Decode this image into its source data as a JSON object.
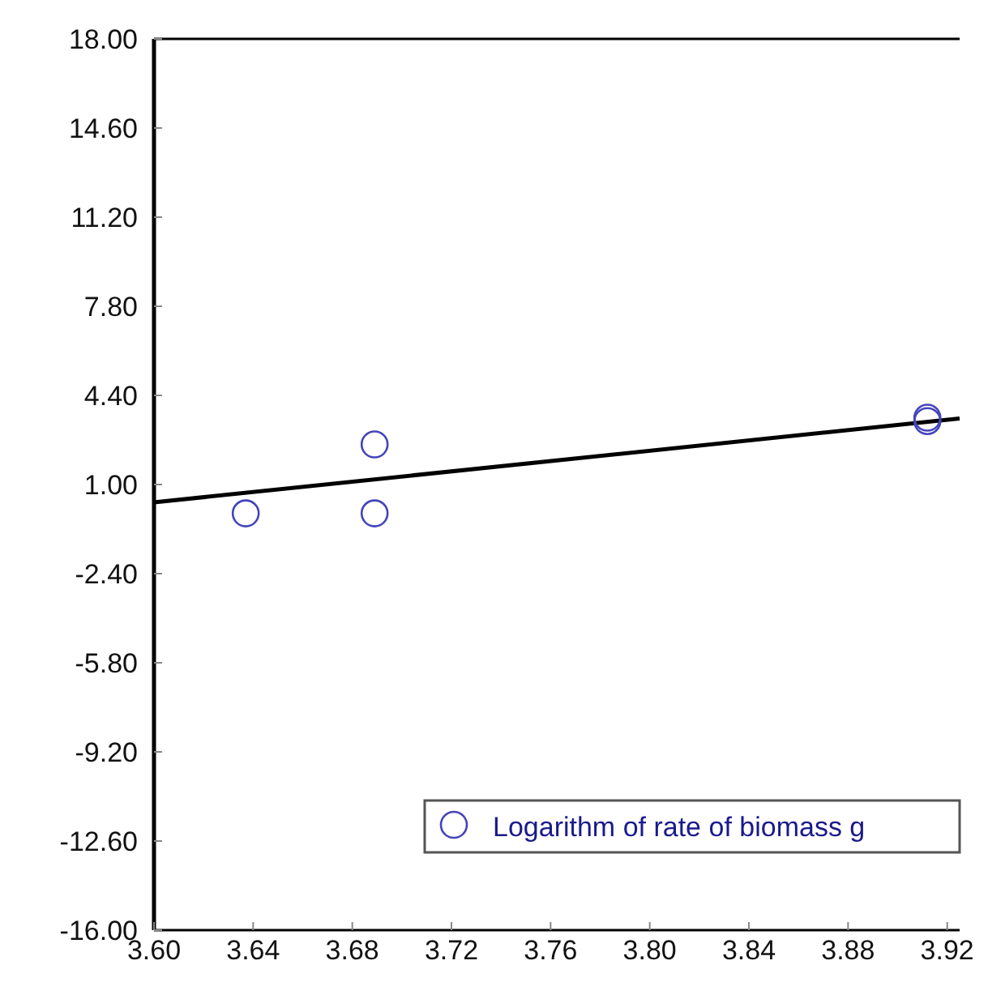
{
  "chart_data": {
    "type": "scatter",
    "xlim": [
      3.6,
      3.925
    ],
    "ylim": [
      -16,
      18
    ],
    "xticks": [
      {
        "value": 3.6,
        "label": "3.60"
      },
      {
        "value": 3.64,
        "label": "3.64"
      },
      {
        "value": 3.68,
        "label": "3.68"
      },
      {
        "value": 3.72,
        "label": "3.72"
      },
      {
        "value": 3.76,
        "label": "3.76"
      },
      {
        "value": 3.8,
        "label": "3.80"
      },
      {
        "value": 3.84,
        "label": "3.84"
      },
      {
        "value": 3.88,
        "label": "3.88"
      },
      {
        "value": 3.92,
        "label": "3.92"
      }
    ],
    "yticks": [
      {
        "value": -16,
        "label": "-16.00"
      },
      {
        "value": -12.6,
        "label": "-12.60"
      },
      {
        "value": -9.2,
        "label": "-9.20"
      },
      {
        "value": -5.8,
        "label": "-5.80"
      },
      {
        "value": -2.4,
        "label": "-2.40"
      },
      {
        "value": 1,
        "label": "1.00"
      },
      {
        "value": 4.4,
        "label": "4.40"
      },
      {
        "value": 7.8,
        "label": "7.80"
      },
      {
        "value": 11.2,
        "label": "11.20"
      },
      {
        "value": 14.6,
        "label": "14.60"
      },
      {
        "value": 18,
        "label": "18.00"
      }
    ],
    "series": [
      {
        "type": "line",
        "color": "#000000",
        "x": [
          3.6,
          3.925
        ],
        "values": [
          0.32,
          3.52
        ]
      },
      {
        "name": "Logarithm of rate of biomass g",
        "color": "#4444bb",
        "marker": "circle",
        "x": [
          3.637,
          3.689,
          3.689,
          3.912,
          3.912
        ],
        "values": [
          -0.1,
          2.53,
          -0.1,
          3.42,
          3.55
        ]
      }
    ],
    "legend": "bottom right",
    "grid": false
  }
}
